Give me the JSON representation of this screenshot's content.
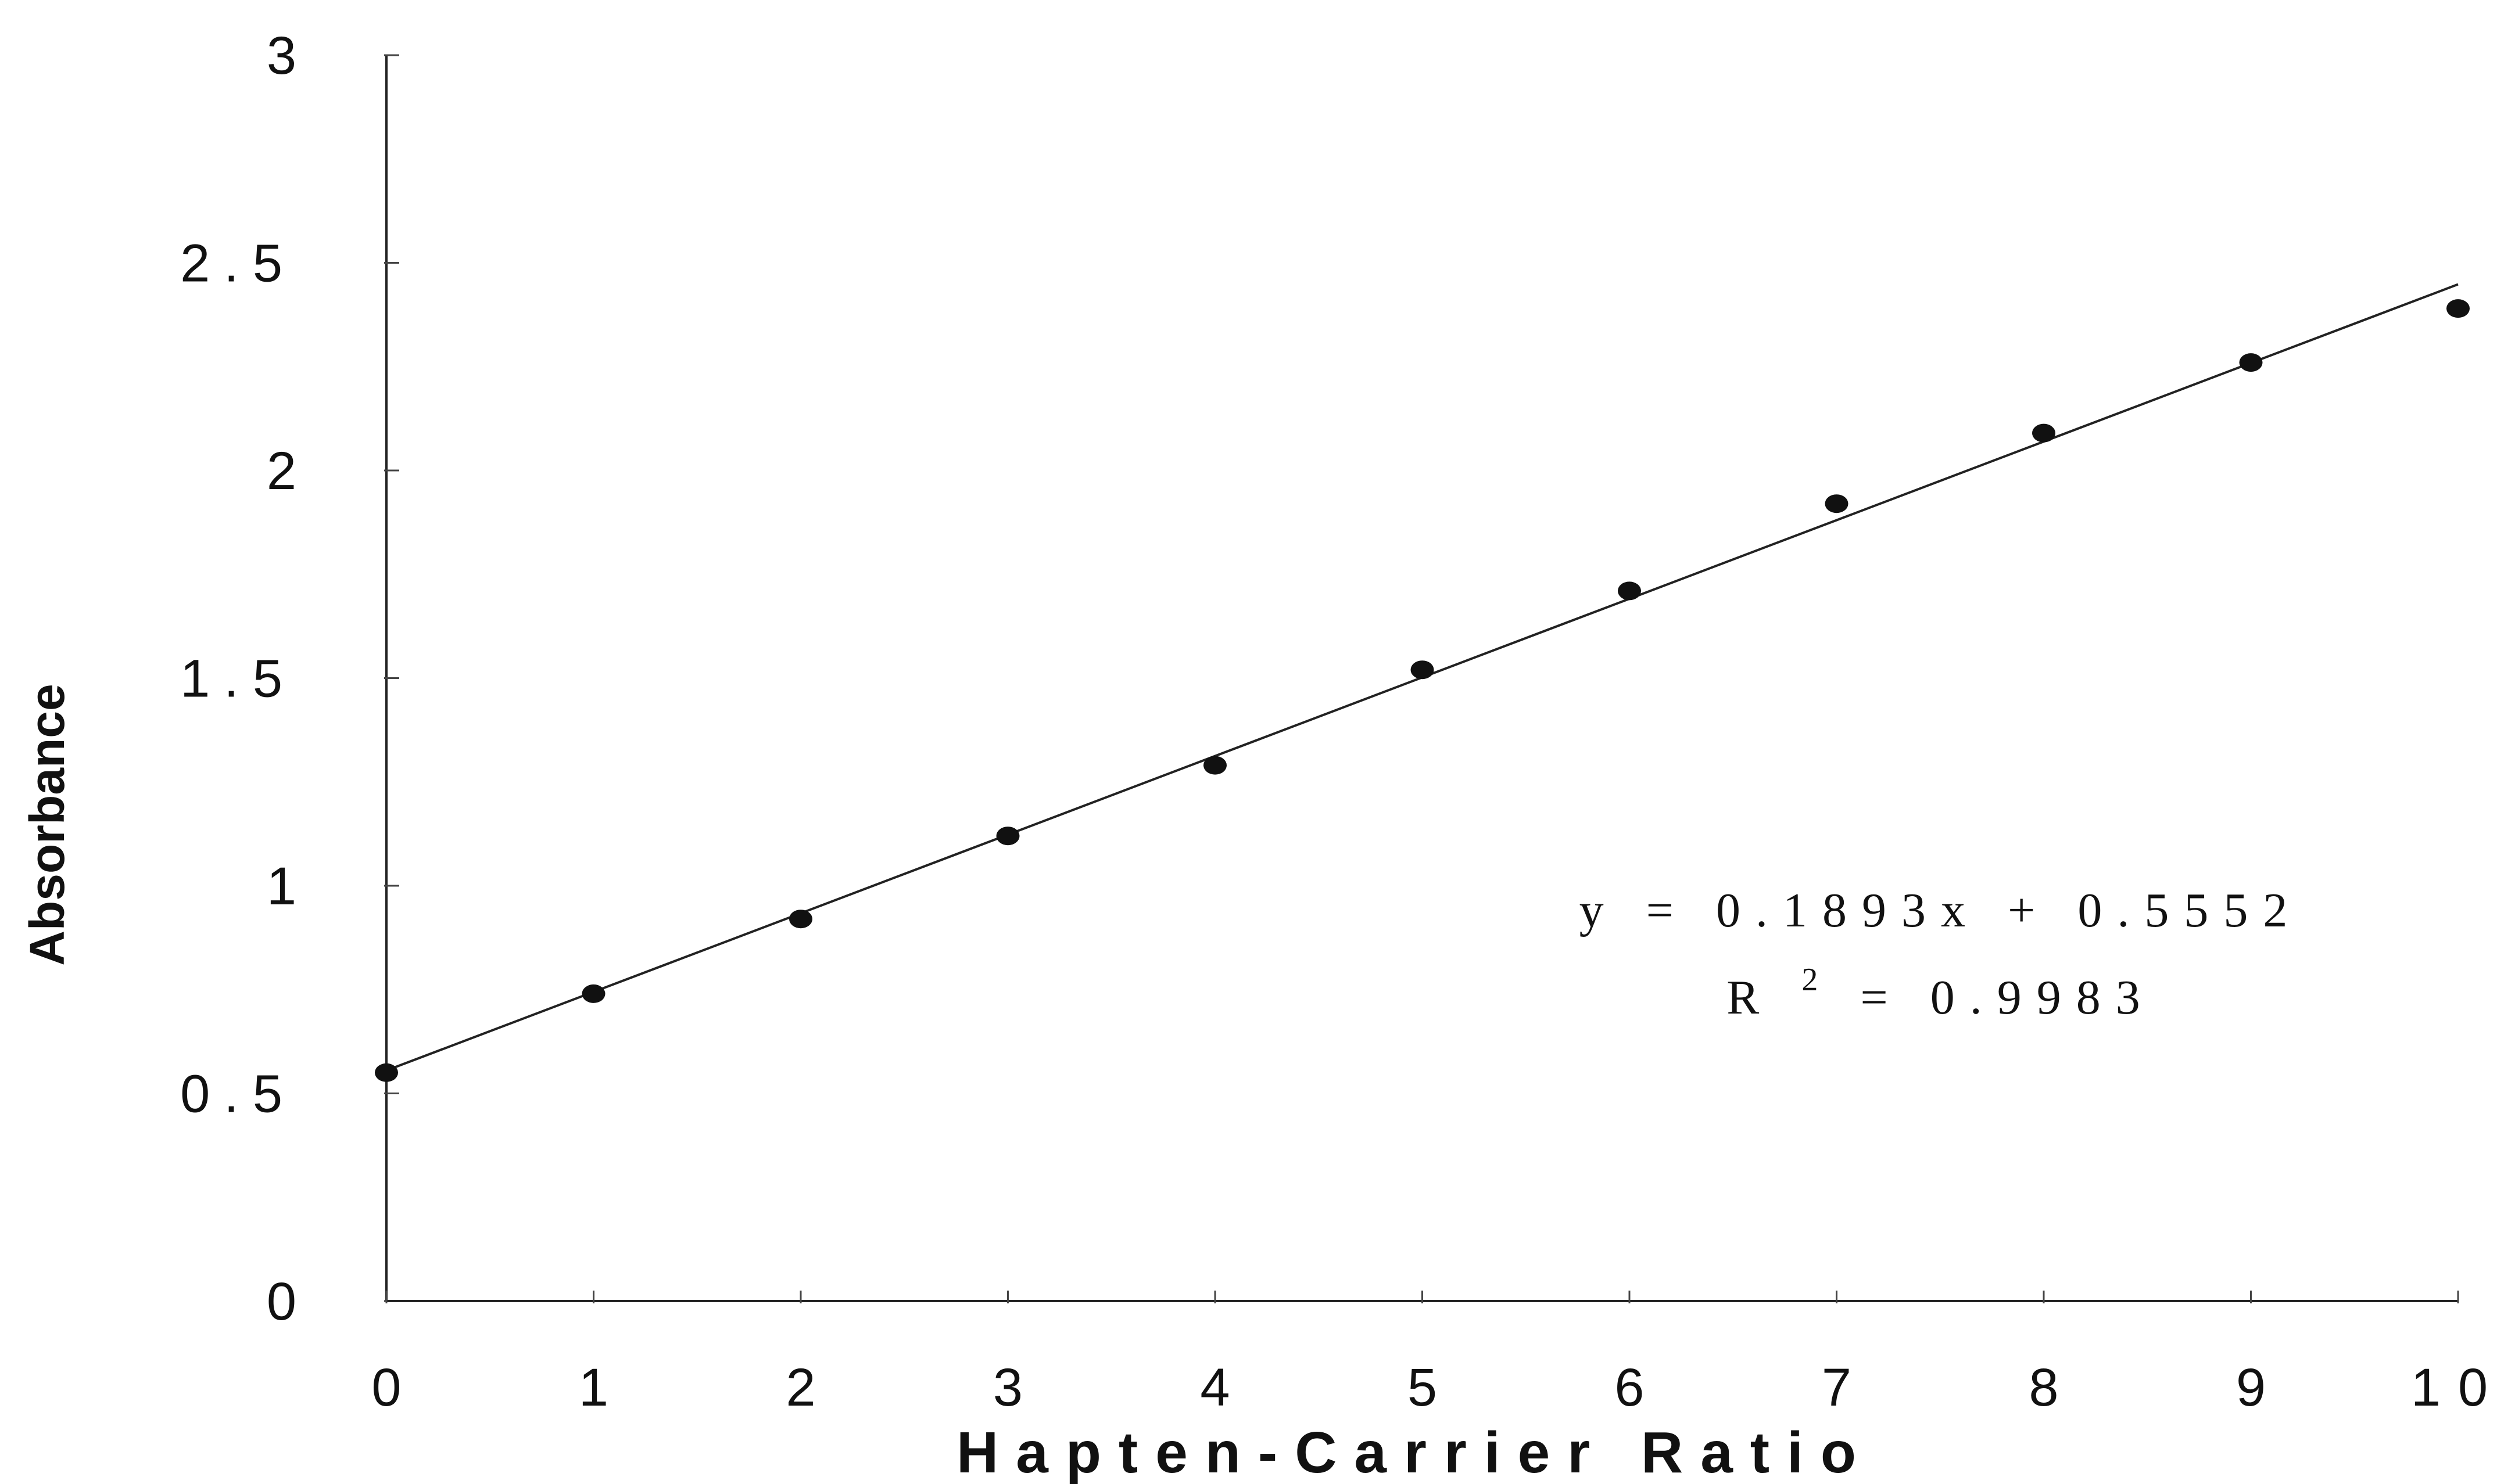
{
  "chart_data": {
    "type": "scatter",
    "title": "",
    "xlabel": "Hapten-Carrier Ratio",
    "ylabel": "Absorbance",
    "xlim": [
      0,
      10
    ],
    "ylim": [
      0,
      3
    ],
    "x_ticks": [
      "0",
      "1",
      "2",
      "3",
      "4",
      "5",
      "6",
      "7",
      "8",
      "9",
      "10"
    ],
    "y_ticks": [
      "0",
      "0.5",
      "1",
      "1.5",
      "2",
      "2.5",
      "3"
    ],
    "grid": false,
    "series": [
      {
        "x": [
          0,
          1,
          2,
          3,
          4,
          5,
          6,
          7,
          8,
          9,
          10
        ],
        "y": [
          0.55,
          0.74,
          0.92,
          1.12,
          1.29,
          1.52,
          1.71,
          1.92,
          2.09,
          2.26,
          2.39
        ]
      }
    ],
    "trendline": {
      "slope": 0.1893,
      "intercept": 0.5552,
      "equation": "y = 0.1893x + 0.5552",
      "r_squared_label": "R",
      "r_squared_sup": "2",
      "r_squared_value": "= 0.9983"
    }
  }
}
